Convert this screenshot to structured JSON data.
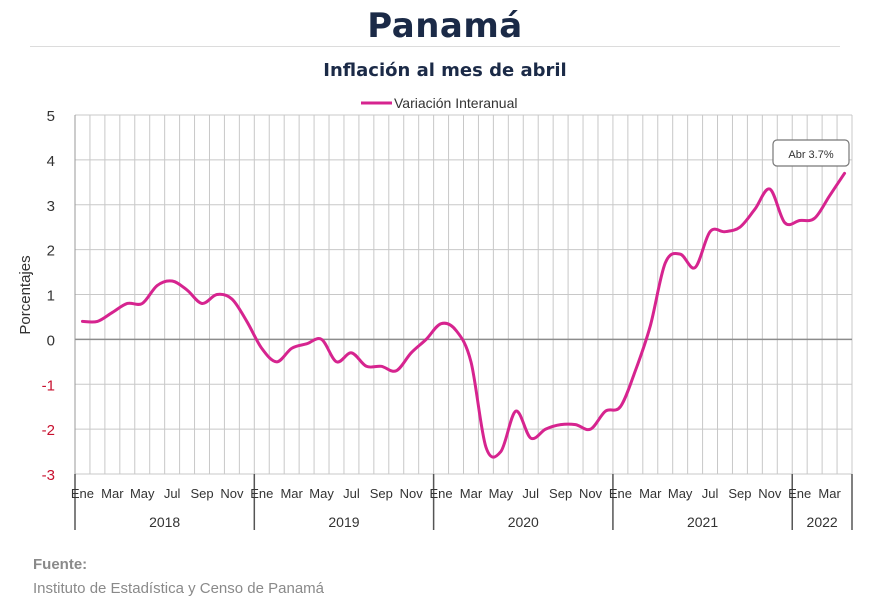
{
  "header": {
    "title": "Panamá",
    "subtitle": "Inflación al mes de abril"
  },
  "source": {
    "label": "Fuente:",
    "text": "Instituto de Estadística y Censo de Panamá"
  },
  "chart_data": {
    "type": "line",
    "title": "Inflación al mes de abril",
    "xlabel": "",
    "ylabel": "Porcentajes",
    "ylim": [
      -3,
      5
    ],
    "yticks": [
      5,
      4,
      3,
      2,
      1,
      0,
      -1,
      -2,
      -3
    ],
    "grid": true,
    "legend_position": "top-center",
    "annotation": "Abr 3.7%",
    "colors": {
      "series": "#d6248f",
      "negative_ticks": "#c8102e",
      "grid": "#c8c8c8",
      "zero_line": "#8c8c8c"
    },
    "month_labels": [
      "Ene",
      "",
      "Mar",
      "",
      "May",
      "",
      "Jul",
      "",
      "Sep",
      "",
      "Nov",
      ""
    ],
    "years": [
      {
        "label": "2018",
        "months": 12
      },
      {
        "label": "2019",
        "months": 12
      },
      {
        "label": "2020",
        "months": 12
      },
      {
        "label": "2021",
        "months": 12
      },
      {
        "label": "2022",
        "months": 4
      }
    ],
    "x": [
      "2018-01",
      "2018-02",
      "2018-03",
      "2018-04",
      "2018-05",
      "2018-06",
      "2018-07",
      "2018-08",
      "2018-09",
      "2018-10",
      "2018-11",
      "2018-12",
      "2019-01",
      "2019-02",
      "2019-03",
      "2019-04",
      "2019-05",
      "2019-06",
      "2019-07",
      "2019-08",
      "2019-09",
      "2019-10",
      "2019-11",
      "2019-12",
      "2020-01",
      "2020-02",
      "2020-03",
      "2020-04",
      "2020-05",
      "2020-06",
      "2020-07",
      "2020-08",
      "2020-09",
      "2020-10",
      "2020-11",
      "2020-12",
      "2021-01",
      "2021-02",
      "2021-03",
      "2021-04",
      "2021-05",
      "2021-06",
      "2021-07",
      "2021-08",
      "2021-09",
      "2021-10",
      "2021-11",
      "2021-12",
      "2022-01",
      "2022-02",
      "2022-03",
      "2022-04"
    ],
    "series": [
      {
        "name": "Variación Interanual",
        "values": [
          0.4,
          0.4,
          0.6,
          0.8,
          0.8,
          1.2,
          1.3,
          1.1,
          0.8,
          1.0,
          0.9,
          0.4,
          -0.2,
          -0.5,
          -0.2,
          -0.1,
          0.0,
          -0.5,
          -0.3,
          -0.6,
          -0.6,
          -0.7,
          -0.3,
          0.0,
          0.35,
          0.2,
          -0.5,
          -2.4,
          -2.5,
          -1.6,
          -2.2,
          -2.0,
          -1.9,
          -1.9,
          -2.0,
          -1.6,
          -1.5,
          -0.7,
          0.3,
          1.7,
          1.9,
          1.6,
          2.4,
          2.4,
          2.5,
          2.9,
          3.35,
          2.6,
          2.65,
          2.7,
          3.2,
          3.7
        ]
      }
    ]
  }
}
